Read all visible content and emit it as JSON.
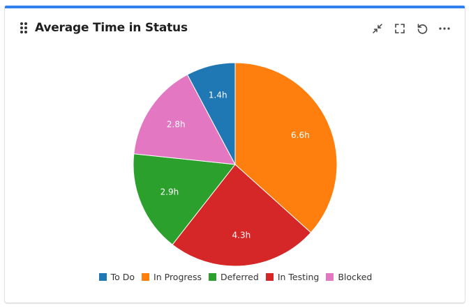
{
  "header": {
    "title": "Average Time in Status",
    "icons": [
      "drag-handle-icon",
      "collapse-icon",
      "fullscreen-icon",
      "refresh-icon",
      "more-icon"
    ]
  },
  "colors": {
    "accent": "#2f80ed",
    "to_do": "#1f77b4",
    "in_progress": "#ff7f0e",
    "deferred": "#2ca02c",
    "in_testing": "#d62728",
    "blocked": "#e377c2"
  },
  "legend": [
    {
      "label": "To Do",
      "color": "#1f77b4"
    },
    {
      "label": "In Progress",
      "color": "#ff7f0e"
    },
    {
      "label": "Deferred",
      "color": "#2ca02c"
    },
    {
      "label": "In Testing",
      "color": "#d62728"
    },
    {
      "label": "Blocked",
      "color": "#e377c2"
    }
  ],
  "chart_data": {
    "type": "pie",
    "title": "Average Time in Status",
    "categories": [
      "To Do",
      "In Progress",
      "Deferred",
      "In Testing",
      "Blocked"
    ],
    "values": [
      1.4,
      6.6,
      2.9,
      4.3,
      2.8
    ],
    "labels": [
      "1.4h",
      "6.6h",
      "2.9h",
      "4.3h",
      "2.8h"
    ],
    "unit": "h",
    "legend_position": "bottom",
    "slice_order_clockwise_from_top": [
      "In Progress",
      "In Testing",
      "Deferred",
      "Blocked",
      "To Do"
    ]
  }
}
